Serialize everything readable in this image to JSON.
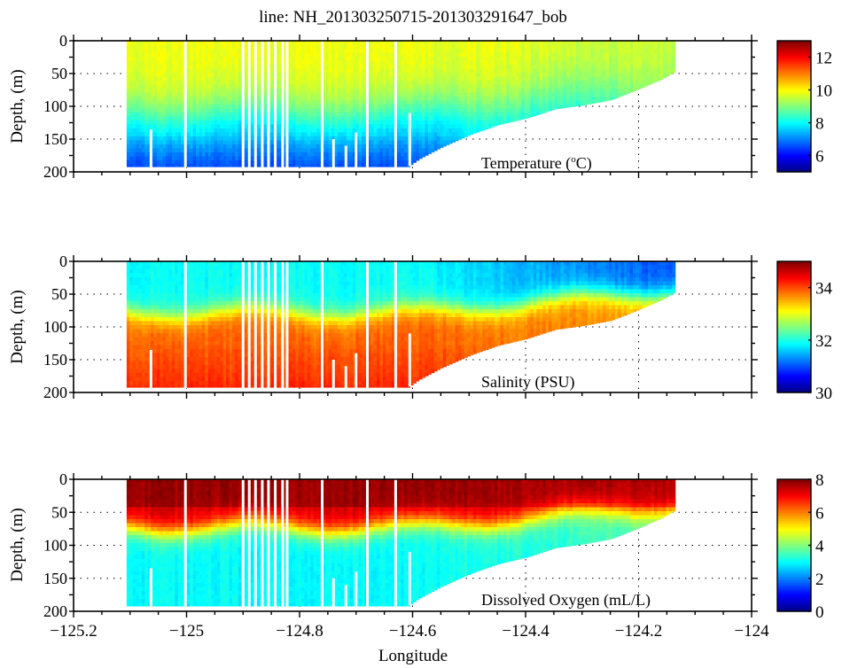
{
  "chart_data": [
    {
      "type": "heatmap",
      "title": "line: NH_201303250715-201303291647_bob",
      "panel_label": "Temperature (°C)",
      "panel_label_parts": {
        "prefix": "Temperature (",
        "superscript": "o",
        "suffix": "C)"
      },
      "variable": "temperature",
      "xlabel": "",
      "ylabel": "Depth, (m)",
      "xlim": [
        -125.2,
        -124
      ],
      "ylim": [
        0,
        200
      ],
      "y_ticks": [
        0,
        50,
        100,
        150,
        200
      ],
      "y_tick_labels": [
        "0",
        "50",
        "100",
        "150",
        "200"
      ],
      "x_ticks": [
        -125.2,
        -125,
        -124.8,
        -124.6,
        -124.4,
        -124.2,
        -124
      ],
      "grid": true,
      "colorbar": {
        "min": 5,
        "max": 13,
        "ticks": [
          6,
          8,
          10,
          12
        ],
        "tick_labels": [
          "6",
          "8",
          "10",
          "12"
        ],
        "colormap": "jet"
      },
      "profile": {
        "surface": 9.9,
        "thermocline_depth": 110,
        "deep": 7.1,
        "shelf_surface": 9.6,
        "shelf_deep": 8.6
      }
    },
    {
      "type": "heatmap",
      "panel_label": "Salinity (PSU)",
      "variable": "salinity",
      "xlabel": "",
      "ylabel": "Depth, (m)",
      "xlim": [
        -125.2,
        -124
      ],
      "ylim": [
        0,
        200
      ],
      "y_ticks": [
        0,
        50,
        100,
        150,
        200
      ],
      "y_tick_labels": [
        "0",
        "50",
        "100",
        "150",
        "200"
      ],
      "x_ticks": [
        -125.2,
        -125,
        -124.8,
        -124.6,
        -124.4,
        -124.2,
        -124
      ],
      "grid": true,
      "colorbar": {
        "min": 30,
        "max": 35,
        "ticks": [
          30,
          32,
          34
        ],
        "tick_labels": [
          "30",
          "32",
          "34"
        ],
        "colormap": "jet"
      },
      "profile": {
        "surface": 31.9,
        "halocline_depth": 75,
        "deep": 33.9,
        "shelf_surface": 31.0,
        "shelf_deep": 33.6
      }
    },
    {
      "type": "heatmap",
      "panel_label": "Dissolved Oxygen (mL/L)",
      "variable": "oxygen",
      "xlabel": "Longitude",
      "ylabel": "Depth, (m)",
      "xlim": [
        -125.2,
        -124
      ],
      "ylim": [
        0,
        200
      ],
      "y_ticks": [
        0,
        50,
        100,
        150,
        200
      ],
      "y_tick_labels": [
        "0",
        "50",
        "100",
        "150",
        "200"
      ],
      "x_ticks": [
        -125.2,
        -125,
        -124.8,
        -124.6,
        -124.4,
        -124.2,
        -124
      ],
      "x_tick_labels": [
        "−125.2",
        "−125",
        "−124.8",
        "−124.6",
        "−124.4",
        "−124.2",
        "−124"
      ],
      "grid": true,
      "colorbar": {
        "min": 0,
        "max": 8,
        "ticks": [
          0,
          2,
          4,
          6,
          8
        ],
        "tick_labels": [
          "0",
          "2",
          "4",
          "6",
          "8"
        ],
        "colormap": "jet"
      },
      "profile": {
        "surface": 7.4,
        "oxycline_depth": 70,
        "deep": 3.0,
        "shelf_surface": 7.2,
        "shelf_deep": 3.6
      }
    }
  ],
  "section": {
    "lon_start": -125.106,
    "lon_end": -124.138,
    "max_depth": 192,
    "bathymetry": [
      {
        "lon": -124.61,
        "depth": 192
      },
      {
        "lon": -124.59,
        "depth": 180
      },
      {
        "lon": -124.55,
        "depth": 162
      },
      {
        "lon": -124.5,
        "depth": 143
      },
      {
        "lon": -124.45,
        "depth": 128
      },
      {
        "lon": -124.4,
        "depth": 118
      },
      {
        "lon": -124.35,
        "depth": 104
      },
      {
        "lon": -124.3,
        "depth": 98
      },
      {
        "lon": -124.25,
        "depth": 90
      },
      {
        "lon": -124.2,
        "depth": 73
      },
      {
        "lon": -124.16,
        "depth": 58
      },
      {
        "lon": -124.138,
        "depth": 47
      }
    ],
    "gaps": [
      {
        "lon": -125.063,
        "from_depth": 135
      },
      {
        "lon": -125.002,
        "from_depth": 0
      },
      {
        "lon": -124.9,
        "from_depth": 0
      },
      {
        "lon": -124.889,
        "from_depth": 0
      },
      {
        "lon": -124.878,
        "from_depth": 0
      },
      {
        "lon": -124.866,
        "from_depth": 0
      },
      {
        "lon": -124.855,
        "from_depth": 0
      },
      {
        "lon": -124.843,
        "from_depth": 0
      },
      {
        "lon": -124.83,
        "from_depth": 0
      },
      {
        "lon": -124.822,
        "from_depth": 0
      },
      {
        "lon": -124.76,
        "from_depth": 0
      },
      {
        "lon": -124.74,
        "from_depth": 150
      },
      {
        "lon": -124.718,
        "from_depth": 160
      },
      {
        "lon": -124.7,
        "from_depth": 140
      },
      {
        "lon": -124.68,
        "from_depth": 0
      },
      {
        "lon": -124.63,
        "from_depth": 0
      },
      {
        "lon": -124.605,
        "from_depth": 110
      }
    ]
  }
}
